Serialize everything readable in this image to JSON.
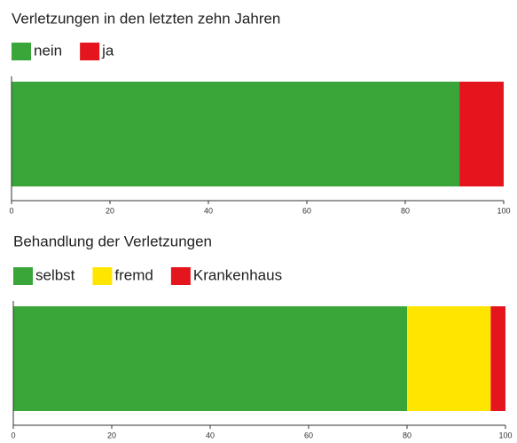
{
  "chart_data": [
    {
      "type": "bar",
      "orientation": "horizontal",
      "stacked": true,
      "title": "Verletzungen in den letzten zehn Jahren",
      "series": [
        {
          "name": "nein",
          "color": "#3aa63a",
          "values": [
            91
          ]
        },
        {
          "name": "ja",
          "color": "#e5151e",
          "values": [
            9
          ]
        }
      ],
      "xlim": [
        0,
        100
      ],
      "xticks": [
        0,
        20,
        40,
        60,
        80,
        100
      ]
    },
    {
      "type": "bar",
      "orientation": "horizontal",
      "stacked": true,
      "title": "Behandlung der Verletzungen",
      "series": [
        {
          "name": "selbst",
          "color": "#3aa63a",
          "values": [
            80
          ]
        },
        {
          "name": "fremd",
          "color": "#ffe600",
          "values": [
            17
          ]
        },
        {
          "name": "Krankenhaus",
          "color": "#e5151e",
          "values": [
            3
          ]
        }
      ],
      "xlim": [
        0,
        100
      ],
      "xticks": [
        0,
        20,
        40,
        60,
        80,
        100
      ]
    }
  ]
}
